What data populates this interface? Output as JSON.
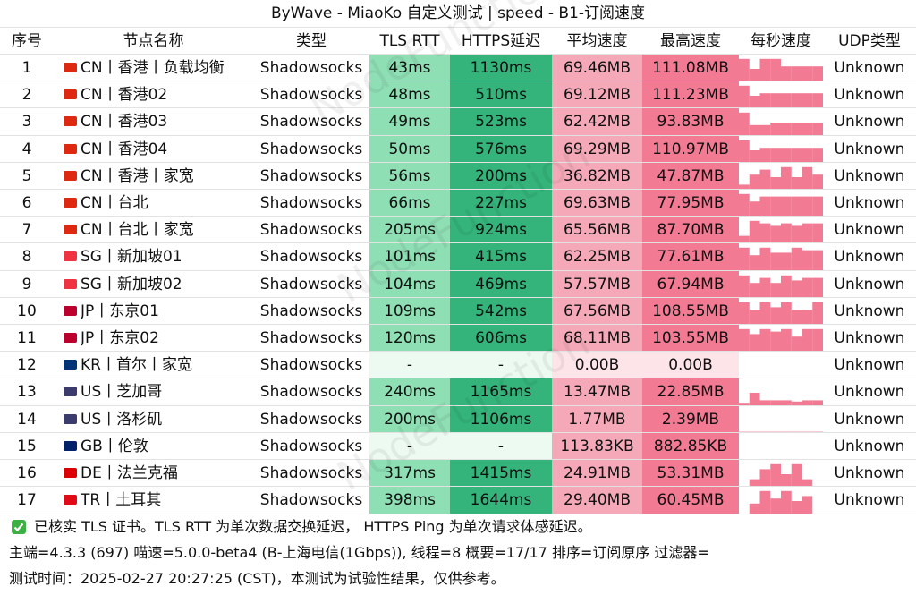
{
  "title": "ByWave - MiaoKo 自定义测试 | speed - B1-订阅速度",
  "watermark": "NodeFunction",
  "table": {
    "header": [
      "序号",
      "节点名称",
      "类型",
      "TLS RTT",
      "HTTPS延迟",
      "平均速度",
      "最高速度",
      "每秒速度",
      "UDP类型"
    ],
    "rows": [
      [
        "1",
        "CN丨香港丨负载均衡",
        "Shadowsocks",
        "43ms",
        "1130ms",
        "69.46MB",
        "111.08MB",
        "Unknown"
      ],
      [
        "2",
        "CN丨香港02",
        "Shadowsocks",
        "48ms",
        "510ms",
        "69.12MB",
        "111.23MB",
        "Unknown"
      ],
      [
        "3",
        "CN丨香港03",
        "Shadowsocks",
        "49ms",
        "523ms",
        "62.42MB",
        "93.83MB",
        "Unknown"
      ],
      [
        "4",
        "CN丨香港04",
        "Shadowsocks",
        "50ms",
        "576ms",
        "69.29MB",
        "110.97MB",
        "Unknown"
      ],
      [
        "5",
        "CN丨香港丨家宽",
        "Shadowsocks",
        "56ms",
        "200ms",
        "36.82MB",
        "47.87MB",
        "Unknown"
      ],
      [
        "6",
        "CN丨台北",
        "Shadowsocks",
        "66ms",
        "227ms",
        "69.63MB",
        "77.95MB",
        "Unknown"
      ],
      [
        "7",
        "CN丨台北丨家宽",
        "Shadowsocks",
        "205ms",
        "924ms",
        "65.56MB",
        "87.70MB",
        "Unknown"
      ],
      [
        "8",
        "SG丨新加坡01",
        "Shadowsocks",
        "101ms",
        "415ms",
        "62.25MB",
        "77.61MB",
        "Unknown"
      ],
      [
        "9",
        "SG丨新加坡02",
        "Shadowsocks",
        "104ms",
        "469ms",
        "57.57MB",
        "67.94MB",
        "Unknown"
      ],
      [
        "10",
        "JP丨东京01",
        "Shadowsocks",
        "109ms",
        "542ms",
        "67.56MB",
        "108.55MB",
        "Unknown"
      ],
      [
        "11",
        "JP丨东京02",
        "Shadowsocks",
        "120ms",
        "606ms",
        "68.11MB",
        "103.55MB",
        "Unknown"
      ],
      [
        "12",
        "KR丨首尔丨家宽",
        "Shadowsocks",
        "-",
        "-",
        "0.00B",
        "0.00B",
        "Unknown"
      ],
      [
        "13",
        "US丨芝加哥",
        "Shadowsocks",
        "240ms",
        "1165ms",
        "13.47MB",
        "22.85MB",
        "Unknown"
      ],
      [
        "14",
        "US丨洛杉矶",
        "Shadowsocks",
        "200ms",
        "1106ms",
        "1.77MB",
        "2.39MB",
        "Unknown"
      ],
      [
        "15",
        "GB丨伦敦",
        "Shadowsocks",
        "-",
        "-",
        "113.83KB",
        "882.85KB",
        "Unknown"
      ],
      [
        "16",
        "DE丨法兰克福",
        "Shadowsocks",
        "317ms",
        "1415ms",
        "24.91MB",
        "53.31MB",
        "Unknown"
      ],
      [
        "17",
        "TR丨土耳其",
        "Shadowsocks",
        "398ms",
        "1644ms",
        "29.40MB",
        "60.45MB",
        "Unknown"
      ]
    ],
    "flags": [
      "#de2910",
      "#de2910",
      "#de2910",
      "#de2910",
      "#de2910",
      "#de2910",
      "#de2910",
      "#ef3340",
      "#ef3340",
      "#bc002d",
      "#bc002d",
      "#003478",
      "#3c3b6e",
      "#3c3b6e",
      "#012169",
      "#dd0000",
      "#e30a17"
    ],
    "speed_bars": [
      [
        0.9,
        0.5,
        0.9,
        0.9,
        0.6,
        0.6,
        0.6,
        0.6
      ],
      [
        0.9,
        0.5,
        0.6,
        0.6,
        0.6,
        0.6,
        0.6,
        0.6
      ],
      [
        0.9,
        0.4,
        0.4,
        0.5,
        0.5,
        0.5,
        0.5,
        0.5
      ],
      [
        0.9,
        0.5,
        0.6,
        0.6,
        0.6,
        0.6,
        0.6,
        0.6
      ],
      [
        0.2,
        0.6,
        0.8,
        0.5,
        0.9,
        0.5,
        0.9,
        0.6
      ],
      [
        0.9,
        0.6,
        0.8,
        0.8,
        0.8,
        0.8,
        0.8,
        0.8
      ],
      [
        0.3,
        0.9,
        0.8,
        0.7,
        0.8,
        0.7,
        0.8,
        0.8
      ],
      [
        0.9,
        0.6,
        0.9,
        0.7,
        0.7,
        0.9,
        0.8,
        0.8
      ],
      [
        0.9,
        0.6,
        0.8,
        0.6,
        0.9,
        0.7,
        0.8,
        0.8
      ],
      [
        0.9,
        0.6,
        0.9,
        0.7,
        0.9,
        0.6,
        0.6,
        0.9
      ],
      [
        0.9,
        0.7,
        0.9,
        0.8,
        0.9,
        0.6,
        0.9,
        0.9
      ],
      [
        0,
        0,
        0,
        0,
        0,
        0,
        0,
        0
      ],
      [
        0.1,
        0.5,
        0.2,
        0.2,
        0.2,
        0.15,
        0.2,
        0.2
      ],
      [
        0.05,
        0.05,
        0.05,
        0.05,
        0.05,
        0.05,
        0.05,
        0.05
      ],
      [
        0,
        0.02,
        0.02,
        0.02,
        0.02,
        0.02,
        0.02,
        0.02
      ],
      [
        0,
        0.3,
        0.7,
        0.9,
        0.5,
        0.9,
        0.3,
        0
      ],
      [
        0,
        0.4,
        0.9,
        0.6,
        0.9,
        0.5,
        0.7,
        0
      ]
    ]
  },
  "footer": {
    "note": "已核实 TLS 证书。TLS RTT 为单次数据交换延迟， HTTPS Ping 为单次请求体感延迟。",
    "info": "主端=4.3.3 (697) 喵速=5.0.0-beta4 (B-上海电信(1Gbps)), 线程=8 概要=17/17 排序=订阅原序 过滤器=",
    "time": "测试时间：2025-02-27 20:27:25 (CST)，本测试为试验性结果，仅供参考。"
  }
}
